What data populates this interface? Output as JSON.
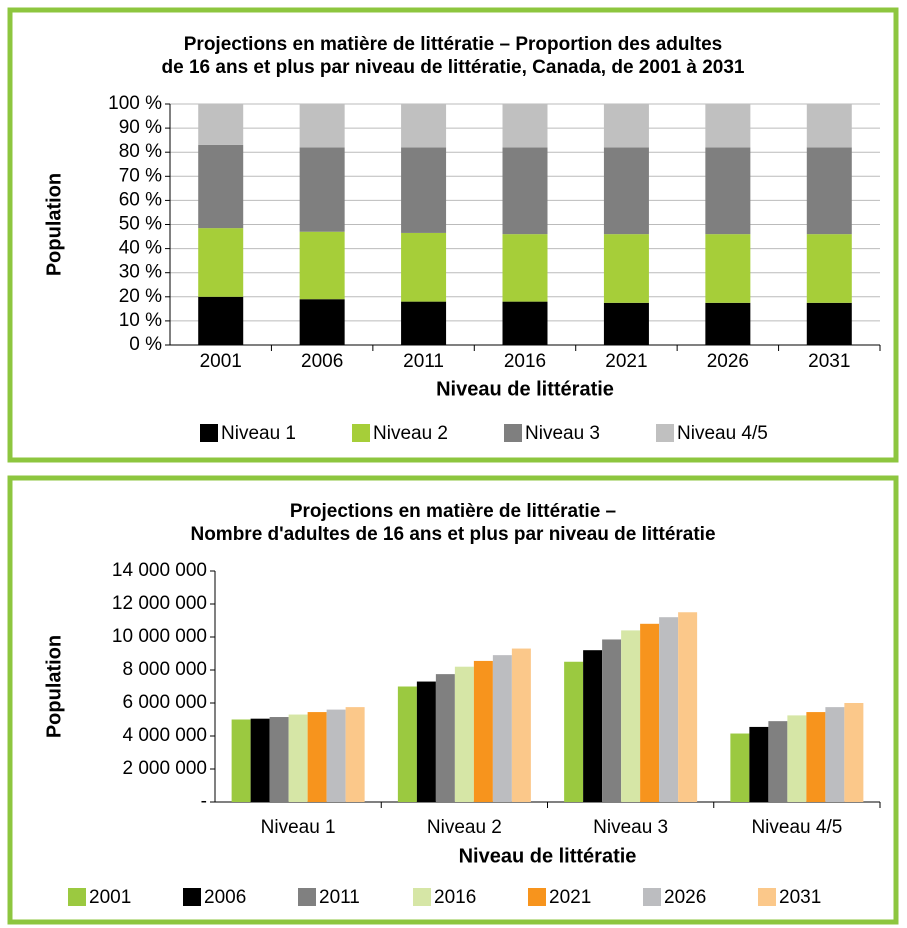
{
  "chart_data": [
    {
      "type": "bar",
      "stacked": true,
      "grid": true,
      "title": [
        "Projections en matière de littératie – Proportion des adultes",
        "de 16 ans et plus par niveau de littératie, Canada, de 2001 à 2031"
      ],
      "y_label": "Population",
      "x_label": "Niveau de littératie",
      "categories": [
        "2001",
        "2006",
        "2011",
        "2016",
        "2021",
        "2026",
        "2031"
      ],
      "series": [
        {
          "name": "Niveau 1",
          "color": "#000000",
          "values": [
            20,
            19,
            18,
            18,
            17.5,
            17.5,
            17.5
          ]
        },
        {
          "name": "Niveau 2",
          "color": "#a6ce39",
          "values": [
            28.5,
            28,
            28.5,
            28,
            28.5,
            28.5,
            28.5
          ]
        },
        {
          "name": "Niveau 3",
          "color": "#7f7f7f",
          "values": [
            34.5,
            35,
            35.5,
            36,
            36,
            36,
            36
          ]
        },
        {
          "name": "Niveau 4/5",
          "color": "#c0c0c0",
          "values": [
            17,
            18,
            18,
            18,
            18,
            18,
            18
          ]
        }
      ],
      "ylim": [
        0,
        100
      ],
      "yticks": [
        {
          "value": 0,
          "label": "0 %"
        },
        {
          "value": 10,
          "label": "10 %"
        },
        {
          "value": 20,
          "label": "20 %"
        },
        {
          "value": 30,
          "label": "30 %"
        },
        {
          "value": 40,
          "label": "40 %"
        },
        {
          "value": 50,
          "label": "50 %"
        },
        {
          "value": 60,
          "label": "60 %"
        },
        {
          "value": 70,
          "label": "70 %"
        },
        {
          "value": 80,
          "label": "80 %"
        },
        {
          "value": 90,
          "label": "90 %"
        },
        {
          "value": 100,
          "label": "100 %"
        }
      ]
    },
    {
      "type": "bar",
      "stacked": false,
      "grid": false,
      "title": [
        "Projections en matière de littératie –",
        "Nombre d'adultes de 16 ans et plus par niveau de littératie"
      ],
      "y_label": "Population",
      "x_label": "Niveau de littératie",
      "categories": [
        "Niveau 1",
        "Niveau 2",
        "Niveau 3",
        "Niveau 4/5"
      ],
      "series": [
        {
          "name": "2001",
          "color": "#9bc940",
          "values": [
            5000000,
            7000000,
            8500000,
            4150000
          ]
        },
        {
          "name": "2006",
          "color": "#000000",
          "values": [
            5050000,
            7300000,
            9200000,
            4550000
          ]
        },
        {
          "name": "2011",
          "color": "#808080",
          "values": [
            5150000,
            7750000,
            9850000,
            4900000
          ]
        },
        {
          "name": "2016",
          "color": "#d6e6a6",
          "values": [
            5300000,
            8200000,
            10400000,
            5250000
          ]
        },
        {
          "name": "2021",
          "color": "#f7941d",
          "values": [
            5450000,
            8550000,
            10800000,
            5450000
          ]
        },
        {
          "name": "2026",
          "color": "#bcbdc0",
          "values": [
            5600000,
            8900000,
            11200000,
            5750000
          ]
        },
        {
          "name": "2031",
          "color": "#fbc88a",
          "values": [
            5750000,
            9300000,
            11500000,
            6000000
          ]
        }
      ],
      "ylim": [
        0,
        14000000
      ],
      "yticks": [
        {
          "value": 0,
          "label": "-"
        },
        {
          "value": 2000000,
          "label": "2 000 000"
        },
        {
          "value": 4000000,
          "label": "4 000 000"
        },
        {
          "value": 6000000,
          "label": "6 000 000"
        },
        {
          "value": 8000000,
          "label": "8 000 000"
        },
        {
          "value": 10000000,
          "label": "10 000 000"
        },
        {
          "value": 12000000,
          "label": "12 000 000"
        },
        {
          "value": 14000000,
          "label": "14 000 000"
        }
      ]
    }
  ]
}
